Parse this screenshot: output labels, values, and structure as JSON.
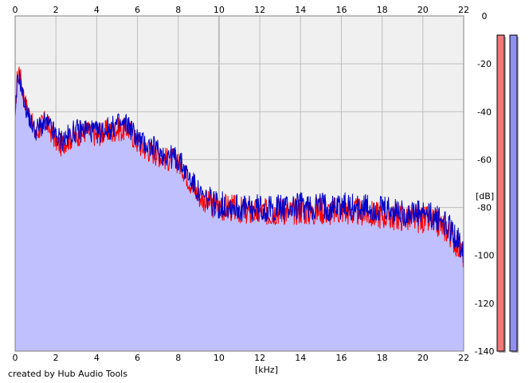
{
  "footer": {
    "credit": "created by Hub Audio Tools"
  },
  "colors": {
    "background": "#ffffff",
    "plot_background": "#f0f0f0",
    "grid": "#bebebe",
    "fill": "#c0c0ff",
    "left_channel": "#ff0000",
    "right_channel": "#0000c8",
    "meter_left": "#f07878",
    "meter_right": "#9090f0"
  },
  "chart_data": {
    "type": "line",
    "title": "",
    "xlabel": "[kHz]",
    "ylabel": "[dB]",
    "xlim": [
      0,
      22
    ],
    "ylim": [
      -140,
      0
    ],
    "x_ticks": [
      "0",
      "2",
      "4",
      "6",
      "8",
      "10",
      "12",
      "14",
      "16",
      "18",
      "20",
      "22"
    ],
    "x_ticks_top": [
      "0",
      "2",
      "4",
      "6",
      "8",
      "10",
      "12",
      "14",
      "16",
      "18",
      "20",
      "22"
    ],
    "y_ticks": [
      "0",
      "-20",
      "-40",
      "-60",
      "-80",
      "-100",
      "-120",
      "-140"
    ],
    "grid": true,
    "filled_area": true,
    "series": [
      {
        "color": "#ff0000",
        "x": [
          0,
          0.1,
          0.2,
          0.35,
          0.5,
          0.75,
          1.0,
          1.25,
          1.5,
          1.75,
          2.0,
          2.25,
          2.5,
          2.75,
          3.0,
          3.25,
          3.5,
          3.75,
          4.0,
          4.25,
          4.5,
          4.75,
          5.0,
          5.25,
          5.5,
          5.75,
          6.0,
          6.25,
          6.5,
          6.75,
          7.0,
          7.25,
          7.5,
          7.75,
          8.0,
          8.25,
          8.5,
          8.75,
          9.0,
          9.25,
          9.5,
          9.75,
          10.0,
          10.5,
          11.0,
          11.5,
          12.0,
          12.5,
          13.0,
          13.5,
          14.0,
          14.5,
          15.0,
          15.5,
          16.0,
          16.5,
          17.0,
          17.5,
          18.0,
          18.5,
          19.0,
          19.5,
          20.0,
          20.5,
          21.0,
          21.25,
          21.5,
          21.75,
          22.0
        ],
        "y": [
          -40,
          -26,
          -22,
          -30,
          -36,
          -42,
          -50,
          -46,
          -44,
          -48,
          -52,
          -54,
          -52,
          -51,
          -50,
          -49,
          -48,
          -49,
          -50,
          -49,
          -48,
          -49,
          -47,
          -48,
          -47,
          -50,
          -53,
          -55,
          -56,
          -57,
          -58,
          -59,
          -60,
          -60,
          -61,
          -64,
          -68,
          -72,
          -75,
          -77,
          -78,
          -79,
          -80,
          -80,
          -81,
          -82,
          -82,
          -82,
          -81,
          -82,
          -81,
          -82,
          -81,
          -82,
          -81,
          -82,
          -82,
          -83,
          -83,
          -84,
          -84,
          -85,
          -85,
          -86,
          -88,
          -90,
          -93,
          -96,
          -100
        ]
      },
      {
        "color": "#0000c8",
        "x": [
          0,
          0.1,
          0.2,
          0.35,
          0.5,
          0.75,
          1.0,
          1.25,
          1.5,
          1.75,
          2.0,
          2.25,
          2.5,
          2.75,
          3.0,
          3.25,
          3.5,
          3.75,
          4.0,
          4.25,
          4.5,
          4.75,
          5.0,
          5.25,
          5.5,
          5.75,
          6.0,
          6.25,
          6.5,
          6.75,
          7.0,
          7.25,
          7.5,
          7.75,
          8.0,
          8.25,
          8.5,
          8.75,
          9.0,
          9.25,
          9.5,
          9.75,
          10.0,
          10.5,
          11.0,
          11.5,
          12.0,
          12.5,
          13.0,
          13.5,
          14.0,
          14.5,
          15.0,
          15.5,
          16.0,
          16.5,
          17.0,
          17.5,
          18.0,
          18.5,
          19.0,
          19.5,
          20.0,
          20.5,
          21.0,
          21.25,
          21.5,
          21.75,
          22.0
        ],
        "y": [
          -45,
          -28,
          -25,
          -32,
          -38,
          -44,
          -48,
          -46,
          -45,
          -47,
          -50,
          -52,
          -51,
          -49,
          -48,
          -48,
          -47,
          -48,
          -49,
          -48,
          -47,
          -47,
          -45,
          -46,
          -45,
          -48,
          -51,
          -53,
          -54,
          -55,
          -56,
          -58,
          -58,
          -59,
          -60,
          -63,
          -67,
          -70,
          -74,
          -76,
          -77,
          -78,
          -79,
          -79,
          -80,
          -81,
          -80,
          -81,
          -80,
          -80,
          -79,
          -80,
          -79,
          -80,
          -79,
          -80,
          -80,
          -81,
          -81,
          -82,
          -82,
          -83,
          -83,
          -84,
          -86,
          -88,
          -91,
          -94,
          -98
        ]
      }
    ],
    "level_meters": [
      {
        "color": "#f07878",
        "bottom_db": -140,
        "top_db": -8
      },
      {
        "color": "#9090f0",
        "bottom_db": -140,
        "top_db": -8
      }
    ]
  }
}
